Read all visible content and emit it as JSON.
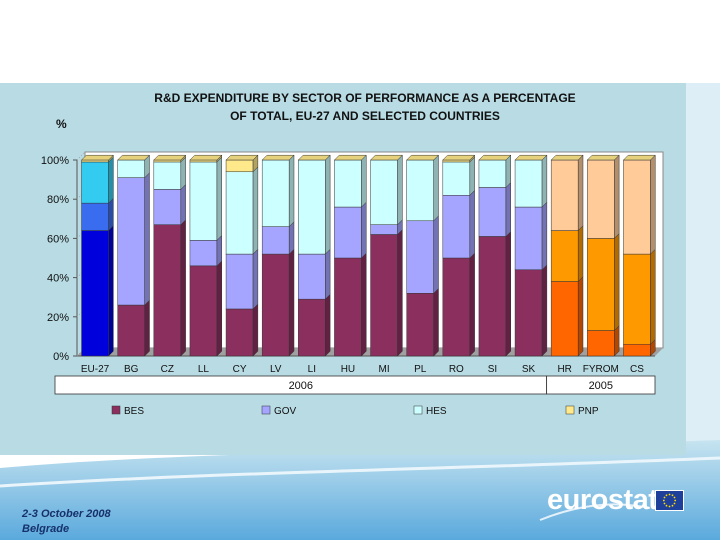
{
  "chart_data": {
    "type": "bar",
    "stacked": true,
    "title_lines": [
      "R&D EXPENDITURE  BY SECTOR OF PERFORMANCE  AS A PERCENTAGE",
      "OF TOTAL, EU-27 AND SELECTED COUNTRIES"
    ],
    "ylabel": "%",
    "ylim": [
      0,
      100
    ],
    "yticks": [
      "0%",
      "20%",
      "40%",
      "60%",
      "80%",
      "100%"
    ],
    "categories": [
      "EU-27",
      "BG",
      "CZ",
      "LL",
      "CY",
      "LV",
      "LI",
      "HU",
      "MI",
      "PL",
      "RO",
      "SI",
      "SK",
      "HR",
      "FYROM",
      "CS"
    ],
    "category_labels": [
      "EU-27",
      "BG",
      "CZ",
      "LL",
      "CY",
      "LV",
      "LI",
      "HU",
      "MI",
      "PL",
      "RO",
      "SI",
      "SK",
      "HR",
      "FYROM",
      "CS"
    ],
    "series": [
      {
        "name": "BES",
        "values": [
          64,
          26,
          67,
          46,
          24,
          52,
          29,
          50,
          62,
          32,
          50,
          61,
          44,
          38,
          13,
          6
        ]
      },
      {
        "name": "GOV",
        "values": [
          14,
          65,
          18,
          13,
          28,
          14,
          23,
          26,
          5,
          37,
          32,
          25,
          32,
          26,
          47,
          46
        ]
      },
      {
        "name": "HES",
        "values": [
          21,
          9,
          14,
          40,
          42,
          34,
          48,
          24,
          33,
          31,
          17,
          14,
          24,
          36,
          40,
          48
        ]
      },
      {
        "name": "PNP",
        "values": [
          1,
          0,
          1,
          1,
          6,
          0,
          0,
          0,
          0,
          0,
          1,
          0,
          0,
          0,
          0,
          0
        ]
      }
    ],
    "groups": [
      {
        "label": "2006",
        "from": "EU-27",
        "to": "SK"
      },
      {
        "label": "2005",
        "from": "HR",
        "to": "CS"
      }
    ],
    "legend": [
      "BES",
      "GOV",
      "HES",
      "PNP"
    ],
    "legend_position": "bottom",
    "colors": {
      "BES": "#8b2f5e",
      "GOV": "#a5a5ff",
      "HES": "#ccffff",
      "PNP": "#ffe98a",
      "EU_BES": "#0000dd",
      "EU_GOV": "#3a6cf0",
      "EU_HES": "#33ccf0",
      "OR_BES": "#ff6600",
      "OR_GOV": "#ff9900",
      "OR_HES": "#ffcc99"
    }
  },
  "footer": {
    "line1": "2-3 October 2008",
    "line2": "Belgrade"
  },
  "logo": {
    "text": "eurostat"
  }
}
